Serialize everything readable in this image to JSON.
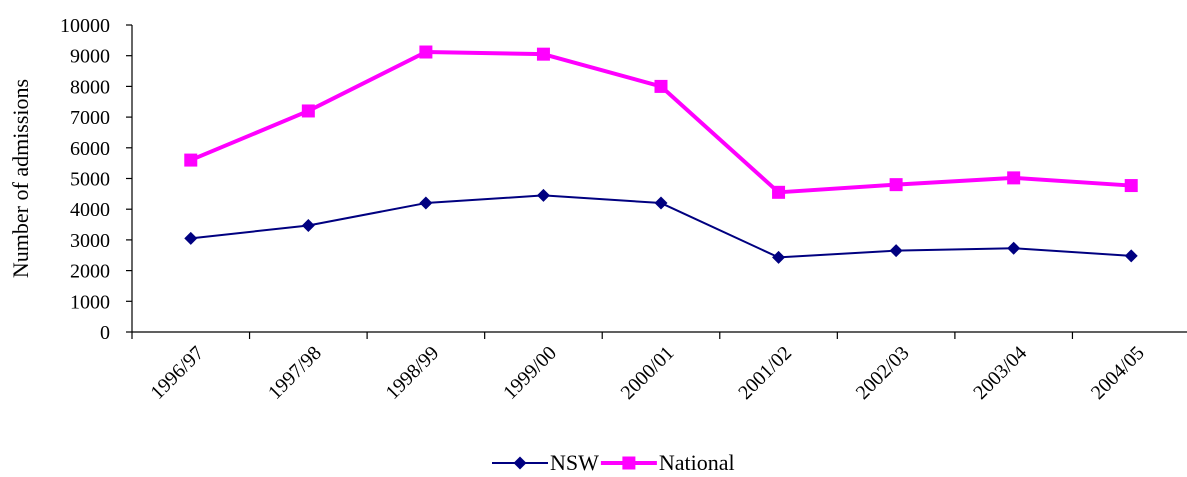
{
  "chart_data": {
    "type": "line",
    "title": "",
    "xlabel": "",
    "ylabel": "Number of admissions",
    "ylim": [
      0,
      10000
    ],
    "yticks": [
      "0",
      "1000",
      "2000",
      "3000",
      "4000",
      "5000",
      "6000",
      "7000",
      "8000",
      "9000",
      "10000"
    ],
    "categories": [
      "1996/97",
      "1997/98",
      "1998/99",
      "1999/00",
      "2000/01",
      "2001/02",
      "2002/03",
      "2003/04",
      "2004/05"
    ],
    "series": [
      {
        "name": "NSW",
        "color": "#000080",
        "marker": "diamond",
        "values": [
          3050,
          3470,
          4200,
          4450,
          4200,
          2430,
          2650,
          2730,
          2480
        ]
      },
      {
        "name": "National",
        "color": "#ff00ff",
        "marker": "square",
        "values": [
          5600,
          7200,
          9120,
          9050,
          8000,
          4550,
          4800,
          5020,
          4770
        ]
      }
    ],
    "grid": false,
    "legend": "bottom-center"
  }
}
